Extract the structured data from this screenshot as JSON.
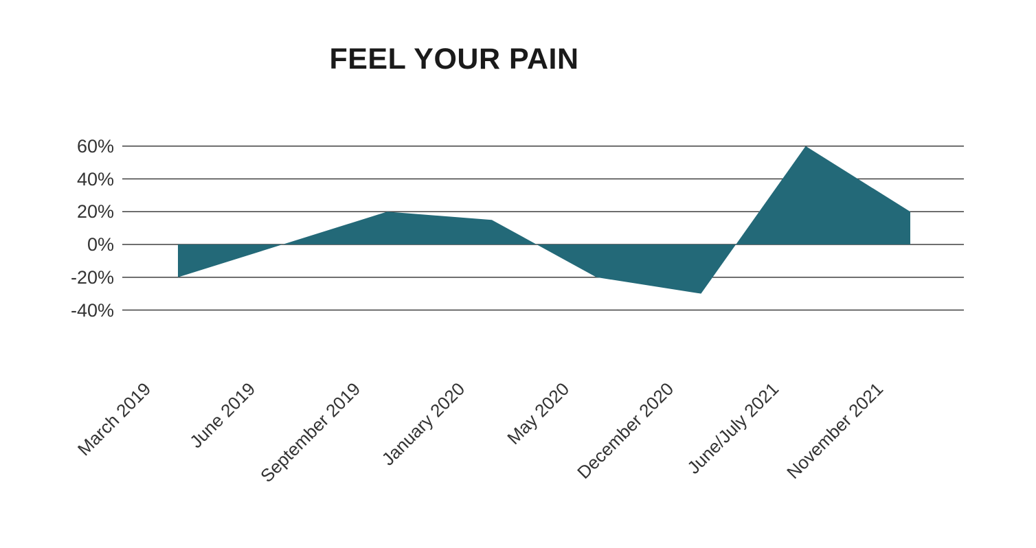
{
  "chart_data": {
    "type": "area",
    "title": "FEEL YOUR PAIN",
    "categories": [
      "March 2019",
      "June 2019",
      "September 2019",
      "January 2020",
      "May 2020",
      "December 2020",
      "June/July 2021",
      "November 2021"
    ],
    "values": [
      -20,
      0,
      20,
      15,
      -20,
      -30,
      60,
      20
    ],
    "baseline": 0,
    "yticks": [
      60,
      40,
      20,
      0,
      -20,
      -40
    ],
    "ytick_labels": [
      "60%",
      "40%",
      "20%",
      "0%",
      "-20%",
      "-40%"
    ],
    "ylim": [
      -40,
      60
    ],
    "grid": "horizontal",
    "legend_position": "none",
    "xtick_rotation_deg": 45
  },
  "colors": {
    "series_fill": "#236978",
    "gridline": "#3f3f3f",
    "axis_label_text": "#333333",
    "title_text": "#1a1a1a",
    "background": "#ffffff"
  }
}
